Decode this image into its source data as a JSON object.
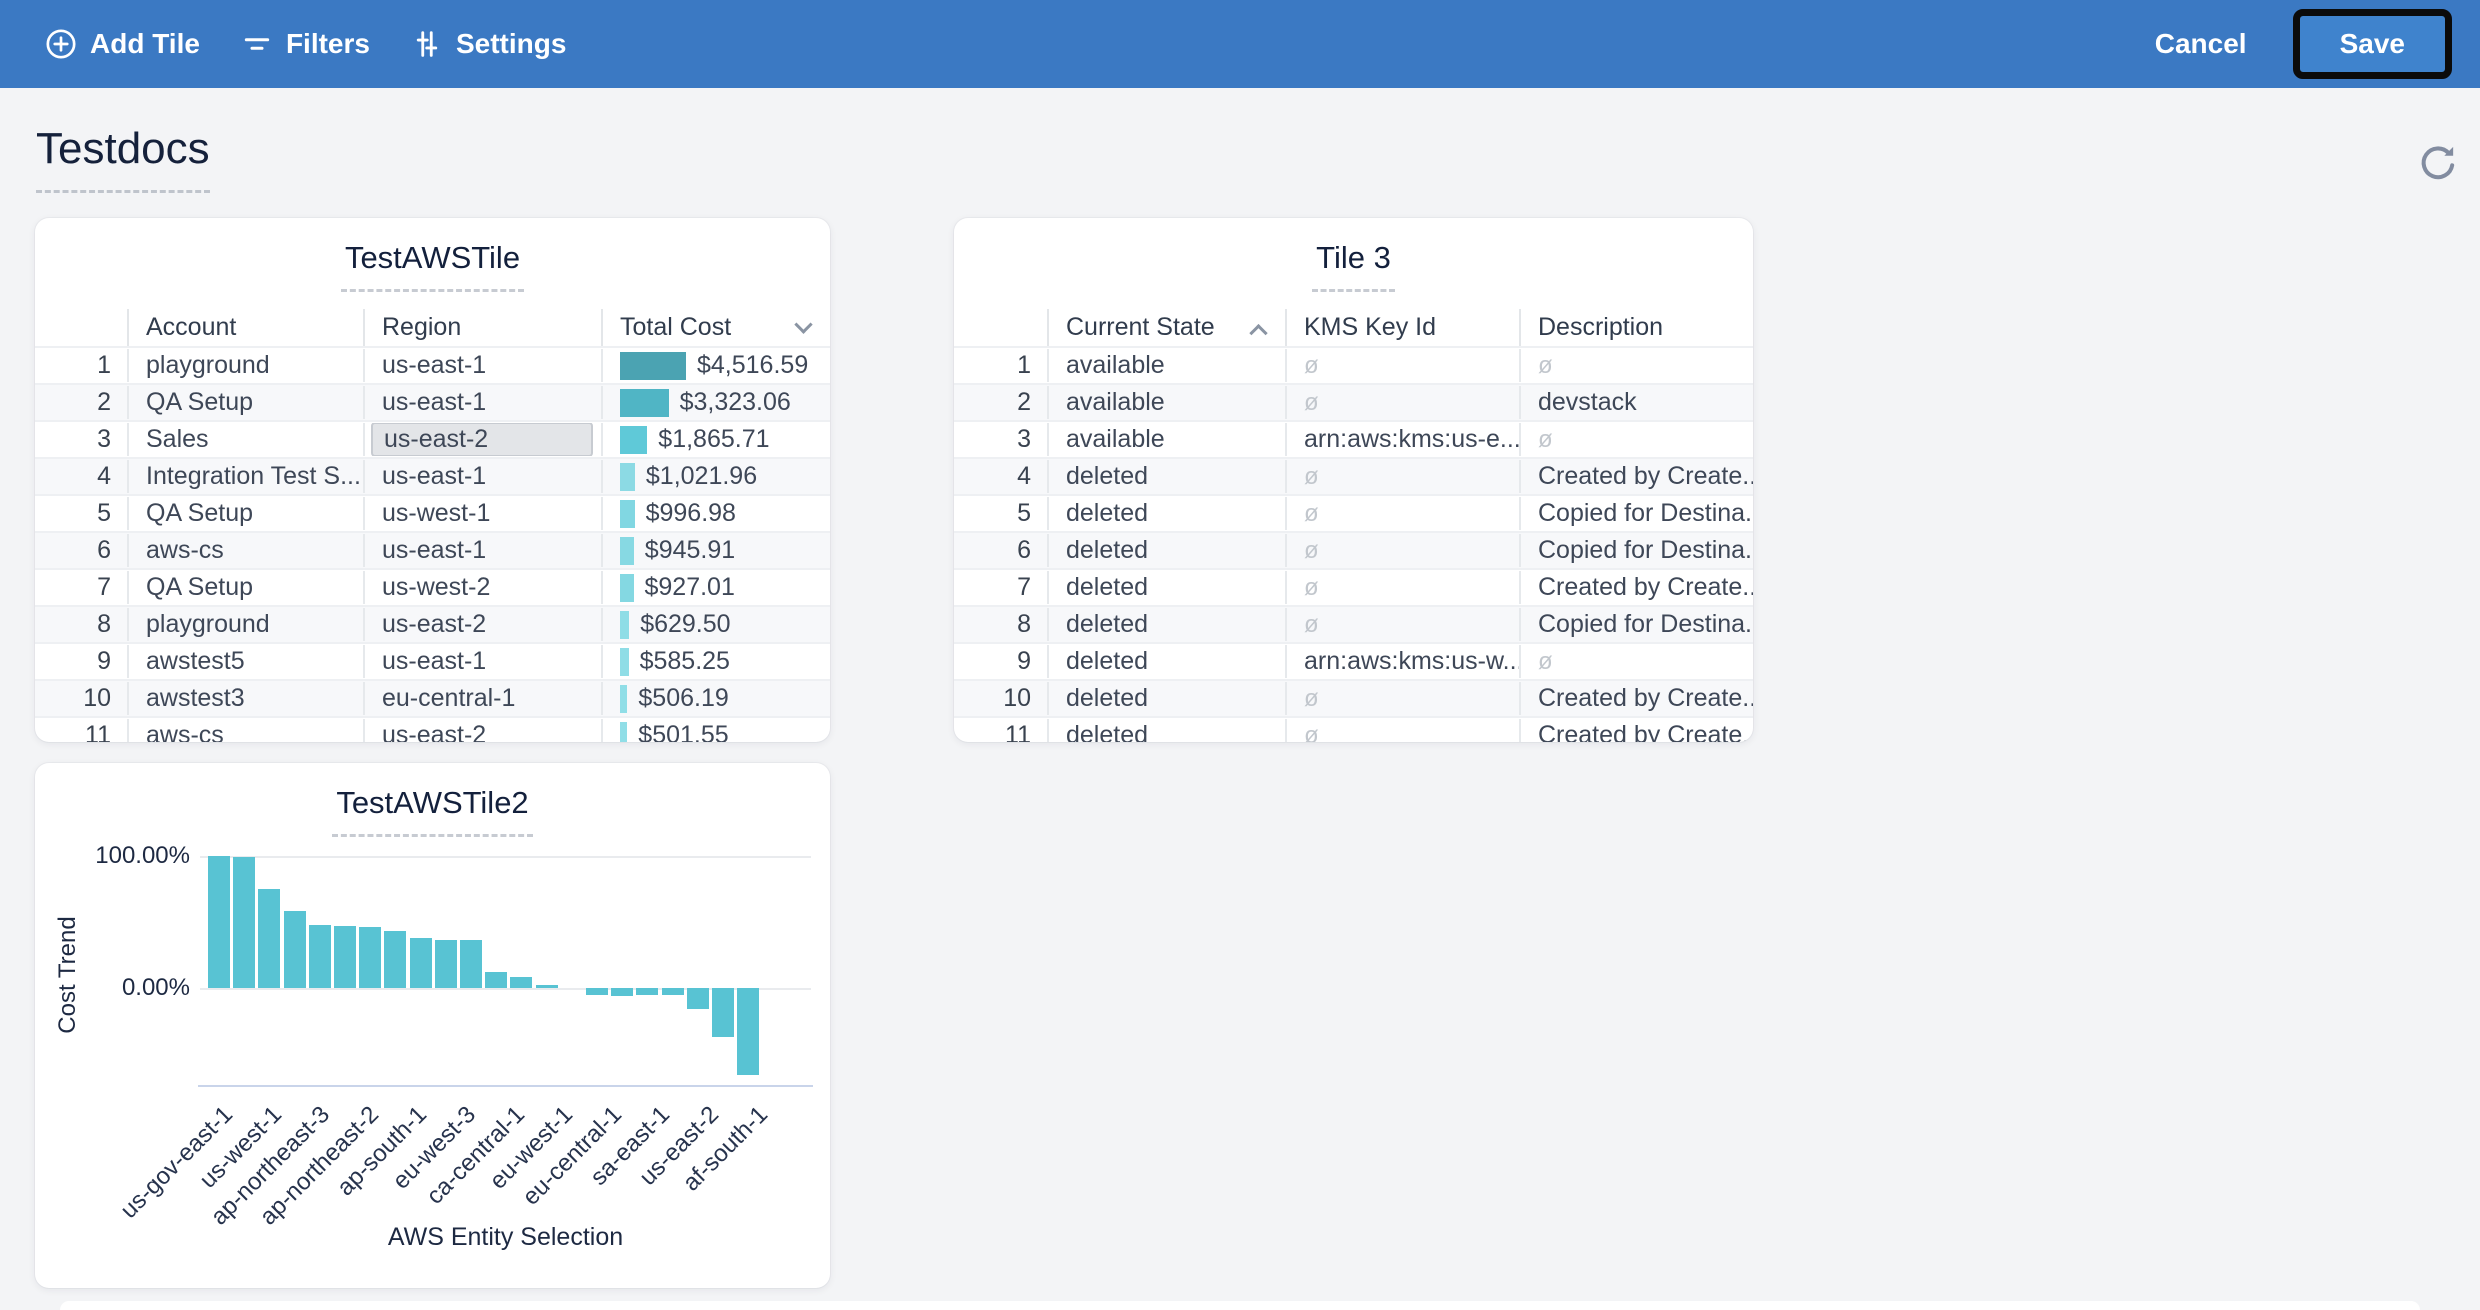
{
  "colors": {
    "topbar_bg": "#3B79C3",
    "save_button_bg": "#3F83CD",
    "chart_bar": "#58C3D3",
    "selected_cell_bg": "#E3E5E8",
    "null_text": "#C2C7CD"
  },
  "topbar": {
    "items": [
      {
        "label": "Add Tile",
        "icon": "plus-circle-icon"
      },
      {
        "label": "Filters",
        "icon": "filter-icon"
      },
      {
        "label": "Settings",
        "icon": "sliders-icon"
      }
    ],
    "cancel_label": "Cancel",
    "save_label": "Save"
  },
  "page": {
    "title": "Testdocs"
  },
  "tile_aws": {
    "title": "TestAWSTile",
    "columns": [
      "Account",
      "Region",
      "Total Cost"
    ],
    "sort": {
      "column": "Total Cost",
      "direction": "desc"
    },
    "selected_cell": {
      "row": 3,
      "column": "Region",
      "value": "us-east-2"
    },
    "max_value": 4516.59,
    "rows": [
      {
        "num": "1",
        "account": "playground",
        "region": "us-east-1",
        "total_cost": "$4,516.59",
        "value": 4516.59,
        "bar_color": "#4BA3B2"
      },
      {
        "num": "2",
        "account": "QA Setup",
        "region": "us-east-1",
        "total_cost": "$3,323.06",
        "value": 3323.06,
        "bar_color": "#50B5C5"
      },
      {
        "num": "3",
        "account": "Sales",
        "region": "us-east-2",
        "total_cost": "$1,865.71",
        "value": 1865.71,
        "bar_color": "#5FC9D8"
      },
      {
        "num": "4",
        "account": "Integration Test S...",
        "region": "us-east-1",
        "total_cost": "$1,021.96",
        "value": 1021.96,
        "bar_color": "#8CDAE4"
      },
      {
        "num": "5",
        "account": "QA Setup",
        "region": "us-west-1",
        "total_cost": "$996.98",
        "value": 996.98,
        "bar_color": "#81D7E2"
      },
      {
        "num": "6",
        "account": "aws-cs",
        "region": "us-east-1",
        "total_cost": "$945.91",
        "value": 945.91,
        "bar_color": "#87D9E3"
      },
      {
        "num": "7",
        "account": "QA Setup",
        "region": "us-west-2",
        "total_cost": "$927.01",
        "value": 927.01,
        "bar_color": "#84D8E2"
      },
      {
        "num": "8",
        "account": "playground",
        "region": "us-east-2",
        "total_cost": "$629.50",
        "value": 629.5,
        "bar_color": "#8EDDE6"
      },
      {
        "num": "9",
        "account": "awstest5",
        "region": "us-east-1",
        "total_cost": "$585.25",
        "value": 585.25,
        "bar_color": "#8FDDE6"
      },
      {
        "num": "10",
        "account": "awstest3",
        "region": "eu-central-1",
        "total_cost": "$506.19",
        "value": 506.19,
        "bar_color": "#90DEE7"
      },
      {
        "num": "11",
        "account": "aws-cs",
        "region": "us-east-2",
        "total_cost": "$501.55",
        "value": 501.55,
        "bar_color": "#90DEE7"
      }
    ]
  },
  "tile3": {
    "title": "Tile 3",
    "columns": [
      "Current State",
      "KMS Key Id",
      "Description"
    ],
    "sort": {
      "column": "Current State",
      "direction": "asc"
    },
    "null_glyph": "ø",
    "rows": [
      {
        "num": "1",
        "current_state": "available",
        "kms_key_id": null,
        "description": null
      },
      {
        "num": "2",
        "current_state": "available",
        "kms_key_id": null,
        "description": "devstack"
      },
      {
        "num": "3",
        "current_state": "available",
        "kms_key_id": "arn:aws:kms:us-e...",
        "description": null
      },
      {
        "num": "4",
        "current_state": "deleted",
        "kms_key_id": null,
        "description": "Created by Create..."
      },
      {
        "num": "5",
        "current_state": "deleted",
        "kms_key_id": null,
        "description": "Copied for Destina..."
      },
      {
        "num": "6",
        "current_state": "deleted",
        "kms_key_id": null,
        "description": "Copied for Destina..."
      },
      {
        "num": "7",
        "current_state": "deleted",
        "kms_key_id": null,
        "description": "Created by Create..."
      },
      {
        "num": "8",
        "current_state": "deleted",
        "kms_key_id": null,
        "description": "Copied for Destina..."
      },
      {
        "num": "9",
        "current_state": "deleted",
        "kms_key_id": "arn:aws:kms:us-w...",
        "description": null
      },
      {
        "num": "10",
        "current_state": "deleted",
        "kms_key_id": null,
        "description": "Created by Create..."
      },
      {
        "num": "11",
        "current_state": "deleted",
        "kms_key_id": null,
        "description": "Created by Create..."
      }
    ]
  },
  "chart_data": {
    "type": "bar",
    "title": "TestAWSTile2",
    "xlabel": "AWS Entity Selection",
    "ylabel": "Cost Trend",
    "y_ticks": [
      "100.00%",
      "0.00%"
    ],
    "ylim": [
      -75,
      110
    ],
    "grid": true,
    "bar_values_pct": [
      100,
      99.5,
      75,
      58,
      48,
      47,
      46,
      43,
      38,
      36.5,
      36,
      12,
      8,
      2,
      0,
      -5,
      -6,
      -5,
      -5,
      -16,
      -37,
      -66
    ],
    "x_tick_labels": [
      "us-gov-east-1",
      "us-west-1",
      "ap-northeast-3",
      "ap-northeast-2",
      "ap-south-1",
      "eu-west-3",
      "ca-central-1",
      "eu-west-1",
      "eu-central-1",
      "sa-east-1",
      "us-east-2",
      "af-south-1"
    ],
    "x_tick_label_every": 2
  }
}
